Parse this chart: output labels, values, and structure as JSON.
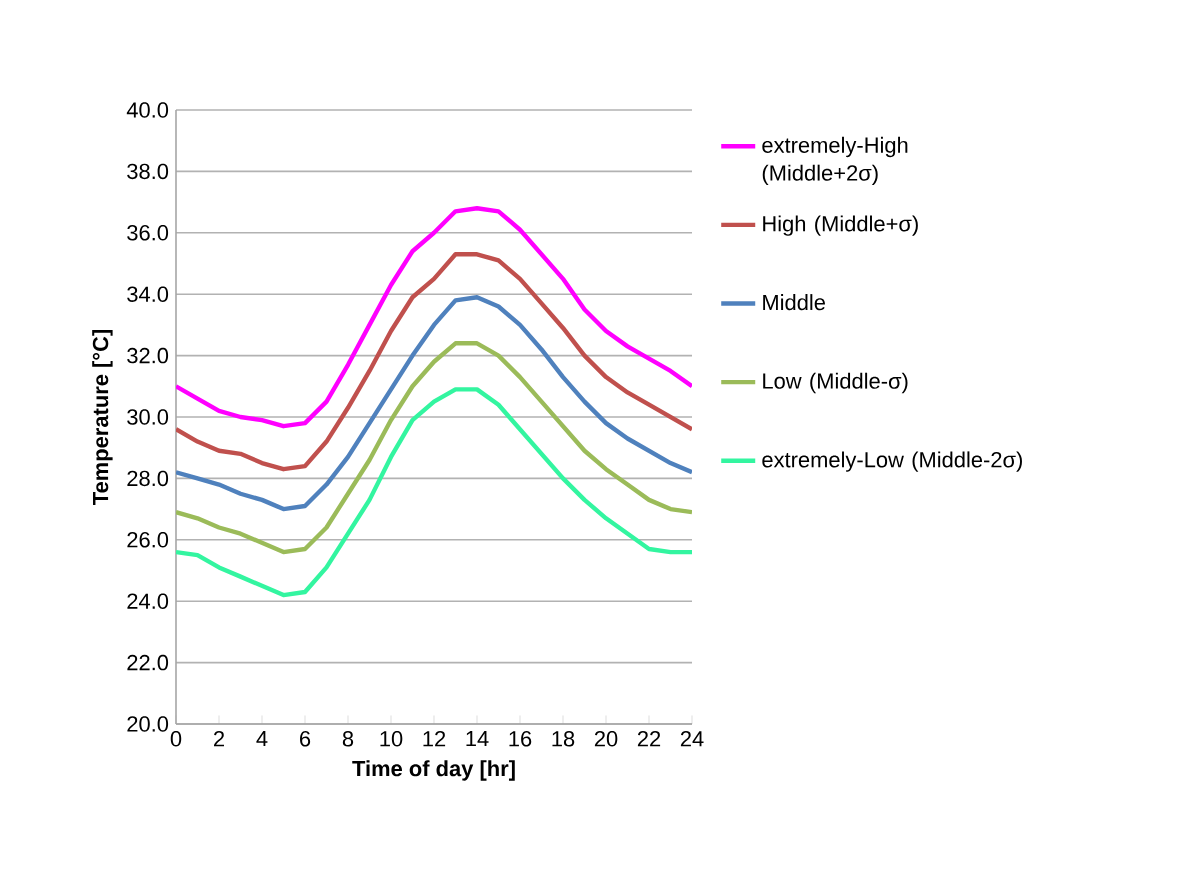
{
  "chart_data": {
    "type": "line",
    "xlabel": "Time of day [hr]",
    "ylabel": "Temperature [°C]",
    "x": [
      0,
      1,
      2,
      3,
      4,
      5,
      6,
      7,
      8,
      9,
      10,
      11,
      12,
      13,
      14,
      15,
      16,
      17,
      18,
      19,
      20,
      21,
      22,
      23,
      24
    ],
    "xlim": [
      0,
      24
    ],
    "xticks": [
      0,
      2,
      4,
      6,
      8,
      10,
      12,
      14,
      16,
      18,
      20,
      22,
      24
    ],
    "ylim": [
      20,
      40
    ],
    "yticks": [
      {
        "value": 20,
        "label": "20.0"
      },
      {
        "value": 22,
        "label": "22.0"
      },
      {
        "value": 24,
        "label": "24.0"
      },
      {
        "value": 26,
        "label": "26.0"
      },
      {
        "value": 28,
        "label": "28.0"
      },
      {
        "value": 30,
        "label": "30.0"
      },
      {
        "value": 32,
        "label": "32.0"
      },
      {
        "value": 34,
        "label": "34.0"
      },
      {
        "value": 36,
        "label": "36.0"
      },
      {
        "value": 38,
        "label": "38.0"
      },
      {
        "value": 40,
        "label": "40.0"
      }
    ],
    "grid": "y",
    "legend": "right",
    "marker": "none",
    "line_style": "solid",
    "series": [
      {
        "name": "extremely-High (Middle+2σ)",
        "color": "#ff00ff",
        "values": [
          31.0,
          30.6,
          30.2,
          30.0,
          29.9,
          29.7,
          29.8,
          30.5,
          31.7,
          33.0,
          34.3,
          35.4,
          36.0,
          36.7,
          36.8,
          36.7,
          36.1,
          35.3,
          34.5,
          33.5,
          32.8,
          32.3,
          31.9,
          31.5,
          31.0
        ]
      },
      {
        "name": "High (Middle+σ)",
        "color": "#c0504d",
        "values": [
          29.6,
          29.2,
          28.9,
          28.8,
          28.5,
          28.3,
          28.4,
          29.2,
          30.3,
          31.5,
          32.8,
          33.9,
          34.5,
          35.3,
          35.3,
          35.1,
          34.5,
          33.7,
          32.9,
          32.0,
          31.3,
          30.8,
          30.4,
          30.0,
          29.6
        ]
      },
      {
        "name": "Middle",
        "color": "#4f81bd",
        "values": [
          28.2,
          28.0,
          27.8,
          27.5,
          27.3,
          27.0,
          27.1,
          27.8,
          28.7,
          29.8,
          30.9,
          32.0,
          33.0,
          33.8,
          33.9,
          33.6,
          33.0,
          32.2,
          31.3,
          30.5,
          29.8,
          29.3,
          28.9,
          28.5,
          28.2
        ]
      },
      {
        "name": "Low (Middle-σ)",
        "color": "#9bbb59",
        "values": [
          26.9,
          26.7,
          26.4,
          26.2,
          25.9,
          25.6,
          25.7,
          26.4,
          27.5,
          28.6,
          29.9,
          31.0,
          31.8,
          32.4,
          32.4,
          32.0,
          31.3,
          30.5,
          29.7,
          28.9,
          28.3,
          27.8,
          27.3,
          27.0,
          26.9
        ]
      },
      {
        "name": "extremely-Low (Middle-2σ)",
        "color": "#33f5a0",
        "values": [
          25.6,
          25.5,
          25.1,
          24.8,
          24.5,
          24.2,
          24.3,
          25.1,
          26.2,
          27.3,
          28.7,
          29.9,
          30.5,
          30.9,
          30.9,
          30.4,
          29.6,
          28.8,
          28.0,
          27.3,
          26.7,
          26.2,
          25.7,
          25.6,
          25.6
        ]
      }
    ]
  }
}
